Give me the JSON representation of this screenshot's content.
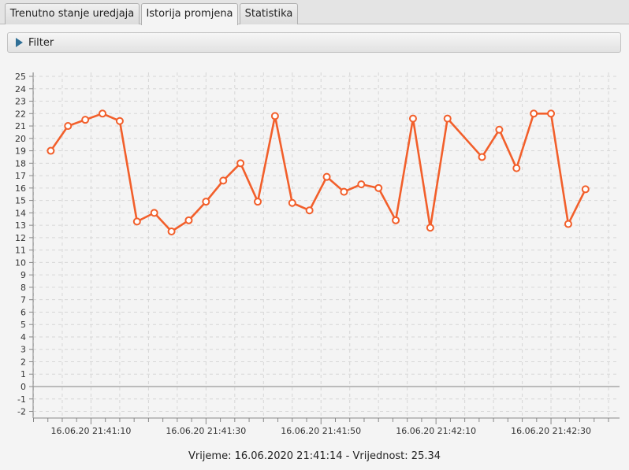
{
  "tabs": [
    {
      "label": "Trenutno stanje uredjaja",
      "active": false
    },
    {
      "label": "Istorija promjena",
      "active": true
    },
    {
      "label": "Statistika",
      "active": false
    }
  ],
  "filter": {
    "label": "Filter",
    "icon": "play-triangle-icon",
    "expanded": false
  },
  "status_text": "Vrijeme: 16.06.2020 21:41:14 - Vrijednost: 25.34",
  "colors": {
    "line": "#f25f2b",
    "marker_fill": "#ffffff",
    "grid": "#d6d6d6",
    "zero_line": "#999999"
  },
  "chart_data": {
    "type": "line",
    "title": "",
    "xlabel": "",
    "ylabel": "",
    "ylim": [
      -2,
      25
    ],
    "grid": true,
    "x_tick_labels": [
      "16.06.20 21:41:10",
      "16.06.20 21:41:30",
      "16.06.20 21:41:50",
      "16.06.20 21:42:10",
      "16.06.20 21:42:30"
    ],
    "x_tick_seconds": [
      10,
      30,
      50,
      70,
      90
    ],
    "y_ticks": [
      -2,
      -1,
      0,
      1,
      2,
      3,
      4,
      5,
      6,
      7,
      8,
      9,
      10,
      11,
      12,
      13,
      14,
      15,
      16,
      17,
      18,
      19,
      20,
      21,
      22,
      23,
      24,
      25
    ],
    "series": [
      {
        "x": [
          3.0,
          6.0,
          9.0,
          12.0,
          15.0,
          18.0,
          21.0,
          24.0,
          27.0,
          30.0,
          33.0,
          36.0,
          39.0,
          42.0,
          45.0,
          48.0,
          51.0,
          54.0,
          57.0,
          60.0,
          63.0,
          66.0,
          69.0,
          72.0,
          78.0,
          81.0,
          84.0,
          87.0,
          90.0,
          93.0,
          96.0
        ],
        "values": [
          19.0,
          21.0,
          21.5,
          22.0,
          21.4,
          13.3,
          14.0,
          12.5,
          13.4,
          14.9,
          16.6,
          18.0,
          14.9,
          21.8,
          14.8,
          14.2,
          16.9,
          15.7,
          16.3,
          16.0,
          13.4,
          21.6,
          12.8,
          21.6,
          18.5,
          20.7,
          17.6,
          22.0,
          22.0,
          13.1,
          15.9
        ]
      }
    ]
  }
}
